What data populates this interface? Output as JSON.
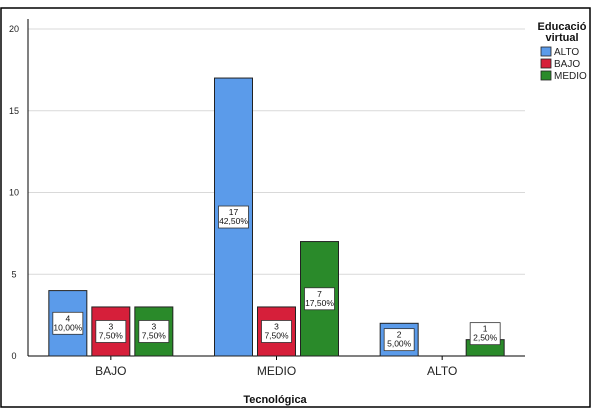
{
  "chart_data": {
    "type": "bar",
    "title": "",
    "xlabel": "Tecnológica",
    "ylabel": "",
    "categories": [
      "BAJO",
      "MEDIO",
      "ALTO"
    ],
    "ylim": [
      0,
      20
    ],
    "yticks": [
      0,
      5,
      10,
      15,
      20
    ],
    "grid": true,
    "legend": {
      "title_lines": [
        "Educació",
        "virtual"
      ],
      "placement": "right"
    },
    "series": [
      {
        "name": "ALTO",
        "color": "#5b9bea",
        "values": [
          4,
          17,
          2
        ],
        "labels": [
          "10,00%",
          "42,50%",
          "5,00%"
        ]
      },
      {
        "name": "BAJO",
        "color": "#d61f3a",
        "values": [
          3,
          3,
          null
        ],
        "labels": [
          "7,50%",
          "7,50%",
          null
        ]
      },
      {
        "name": "MEDIO",
        "color": "#2a8a2a",
        "values": [
          3,
          7,
          1
        ],
        "labels": [
          "7,50%",
          "17,50%",
          "2,50%"
        ]
      }
    ]
  }
}
